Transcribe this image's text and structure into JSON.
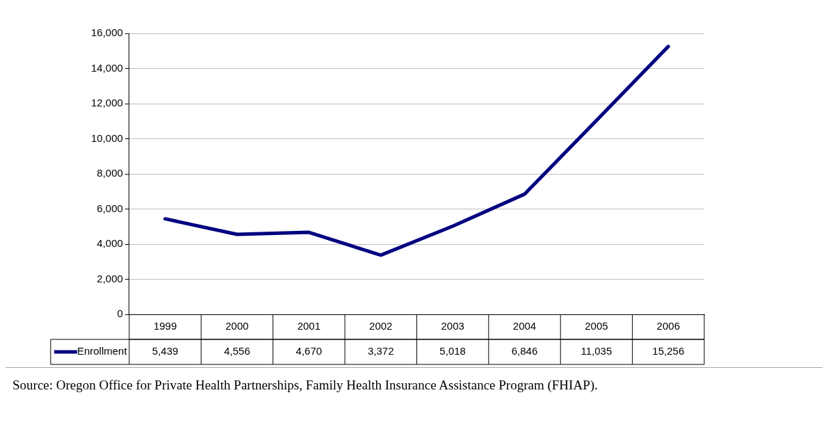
{
  "chart_data": {
    "type": "line",
    "categories": [
      "1999",
      "2000",
      "2001",
      "2002",
      "2003",
      "2004",
      "2005",
      "2006"
    ],
    "series": [
      {
        "name": "Enrollment",
        "color": "#000080",
        "values": [
          5439,
          4556,
          4670,
          3372,
          5018,
          6846,
          11035,
          15256
        ],
        "value_labels": [
          "5,439",
          "4,556",
          "4,670",
          "3,372",
          "5,018",
          "6,846",
          "11,035",
          "15,256"
        ]
      }
    ],
    "ylim": [
      0,
      16000
    ],
    "yticks": [
      0,
      {
        "value": 2000,
        "label": "2,000"
      },
      {
        "value": 4000,
        "label": "4,000"
      },
      {
        "value": 6000,
        "label": "6,000"
      },
      {
        "value": 8000,
        "label": "8,000"
      },
      {
        "value": 10000,
        "label": "10,000"
      },
      {
        "value": 12000,
        "label": "12,000"
      },
      {
        "value": 14000,
        "label": "14,000"
      },
      {
        "value": 16000,
        "label": "16,000"
      }
    ],
    "grid": "y",
    "legend": "bottom",
    "marker": "none",
    "annotations": [
      "Source:  Oregon Office for Private Health Partnerships, Family Health Insurance Assistance Program (FHIAP)."
    ]
  }
}
